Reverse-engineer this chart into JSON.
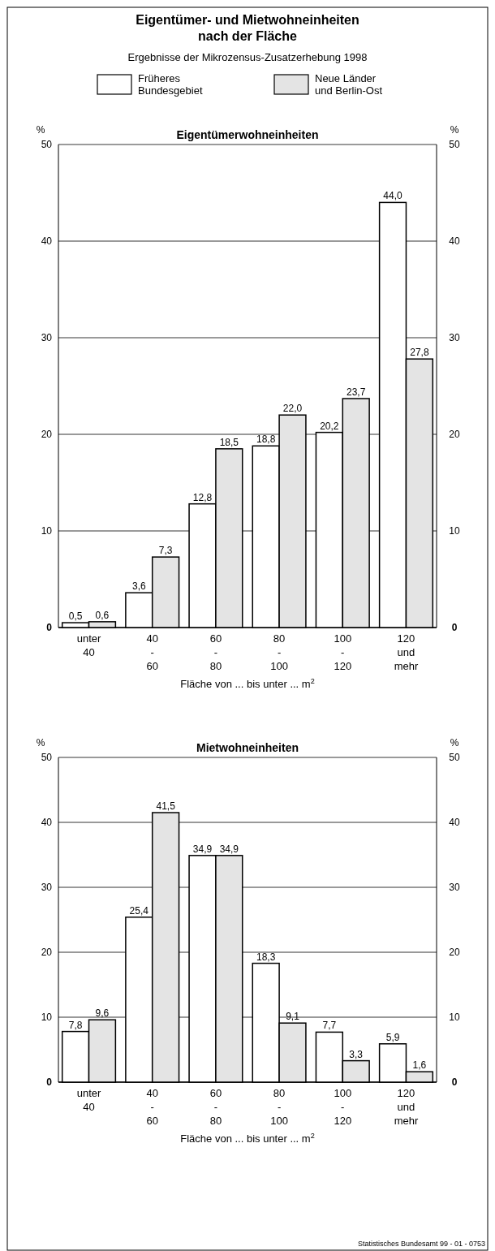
{
  "chart_data": [
    {
      "type": "bar",
      "title": "Eigentümer- und Mietwohneinheiten nach der Fläche",
      "subtitle": "Ergebnisse der Mikrozensus-Zusatzerhebung 1998",
      "annotations": [
        "Eigentümerwohneinheiten"
      ],
      "xlabel": "Fläche von ... bis unter ... m$^{2}$",
      "ylabel": "%",
      "y2label": "%",
      "categories": [
        "unter 40",
        "40 - 60",
        "60 - 80",
        "80 - 100",
        "100 - 120",
        "120 und mehr"
      ],
      "series": [
        {
          "name": "Früheres Bundesgebiet",
          "color": "#ffffff",
          "values": [
            0.5,
            3.6,
            12.8,
            18.8,
            20.2,
            44.0
          ],
          "value_labels": [
            "0,5",
            "3,6",
            "12,8",
            "18,8",
            "20,2",
            "44,0"
          ]
        },
        {
          "name": "Neue Länder und Berlin-Ost",
          "color": "#e4e4e4",
          "values": [
            0.6,
            7.3,
            18.5,
            22.0,
            23.7,
            27.8
          ],
          "value_labels": [
            "0,6",
            "7,3",
            "18,5",
            "22,0",
            "23,7",
            "27,8"
          ]
        }
      ],
      "ylim": [
        0,
        50
      ],
      "yticks": [
        0,
        10,
        20,
        30,
        40,
        50
      ],
      "y2lim": [
        0,
        50
      ],
      "y2ticks": [
        0,
        10,
        20,
        30,
        40,
        50
      ],
      "grid": "y",
      "legend": "top"
    },
    {
      "type": "bar",
      "annotations": [
        "Mietwohneinheiten",
        "Statistisches Bundesamt 99 - 01 - 0753"
      ],
      "xlabel": "Fläche von ... bis unter ... m$^{2}$",
      "ylabel": "%",
      "y2label": "%",
      "categories": [
        "unter 40",
        "40 - 60",
        "60 - 80",
        "80 - 100",
        "100 - 120",
        "120 und mehr"
      ],
      "series": [
        {
          "color": "#ffffff",
          "values": [
            7.8,
            25.4,
            34.9,
            18.3,
            7.7,
            5.9
          ],
          "value_labels": [
            "7,8",
            "25,4",
            "34,9",
            "18,3",
            "7,7",
            "5,9"
          ]
        },
        {
          "color": "#e4e4e4",
          "values": [
            9.6,
            41.5,
            34.9,
            9.1,
            3.3,
            1.6
          ],
          "value_labels": [
            "9,6",
            "41,5",
            "34,9",
            "9,1",
            "3,3",
            "1,6"
          ]
        }
      ],
      "ylim": [
        0,
        50
      ],
      "yticks": [
        0,
        10,
        20,
        30,
        40,
        50
      ],
      "y2lim": [
        0,
        50
      ],
      "y2ticks": [
        0,
        10,
        20,
        30,
        40,
        50
      ],
      "grid": "y"
    }
  ]
}
